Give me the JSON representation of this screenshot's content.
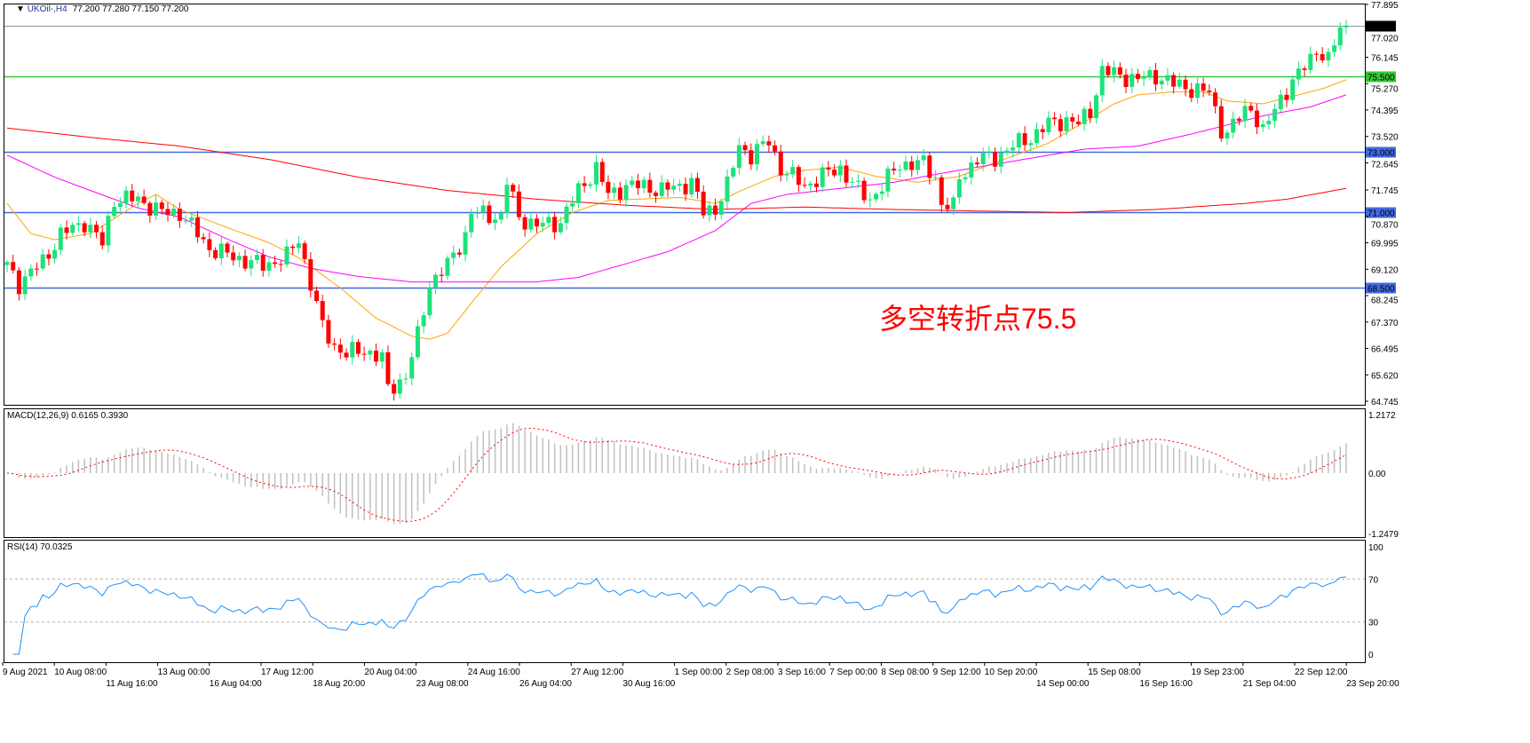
{
  "header": {
    "symbol": "UKOil-,H4",
    "ohlc": "77.200 77.280 77.150 77.200",
    "macd_label": "MACD(12,26,9) 0.6165 0.3930",
    "rsi_label": "RSI(14) 70.0325"
  },
  "annotation": "多空转折点75.5",
  "colors": {
    "bull": "#1de27a",
    "bear": "#ff0000",
    "ma_fast": "#ffa500",
    "ma_mid": "#ff00ff",
    "ma_slow": "#ff0000",
    "level_green": "#32c832",
    "level_blue": "#4169e1",
    "macd_hist": "#c0c0c0",
    "macd_signal": "#ff0000",
    "rsi": "#1e90ff",
    "annotation": "#ff0000"
  },
  "chart_data": [
    {
      "type": "candlestick",
      "title": "UKOil-,H4",
      "ylim": [
        64.745,
        77.895
      ],
      "price_ticks": [
        "77.895",
        "77.020",
        "76.145",
        "75.270",
        "74.395",
        "73.520",
        "72.645",
        "71.745",
        "70.870",
        "69.995",
        "69.120",
        "68.245",
        "67.370",
        "66.495",
        "65.620",
        "64.745"
      ],
      "time_ticks": [
        "9 Aug 2021",
        "10 Aug 08:00",
        "11 Aug 16:00",
        "13 Aug 00:00",
        "16 Aug 04:00",
        "17 Aug 12:00",
        "18 Aug 20:00",
        "20 Aug 04:00",
        "23 Aug 08:00",
        "24 Aug 16:00",
        "26 Aug 04:00",
        "27 Aug 12:00",
        "30 Aug 16:00",
        "1 Sep 00:00",
        "2 Sep 08:00",
        "3 Sep 16:00",
        "7 Sep 00:00",
        "8 Sep 08:00",
        "9 Sep 12:00",
        "10 Sep 20:00",
        "14 Sep 00:00",
        "15 Sep 08:00",
        "16 Sep 16:00",
        "19 Sep 23:00",
        "21 Sep 04:00",
        "22 Sep 12:00",
        "23 Sep 20:00"
      ],
      "bar_count": 226,
      "close_path": [
        [
          0,
          69.24
        ],
        [
          2,
          68.65
        ],
        [
          6,
          69.38
        ],
        [
          9,
          70.26
        ],
        [
          13,
          70.7
        ],
        [
          16,
          69.97
        ],
        [
          18,
          71.44
        ],
        [
          22,
          71.44
        ],
        [
          26,
          71.0
        ],
        [
          29,
          71.0
        ],
        [
          34,
          69.82
        ],
        [
          38,
          69.53
        ],
        [
          43,
          69.24
        ],
        [
          47,
          69.53
        ],
        [
          49,
          70.12
        ],
        [
          51,
          68.65
        ],
        [
          53,
          67.18
        ],
        [
          55,
          66.59
        ],
        [
          57,
          66.3
        ],
        [
          60,
          66.45
        ],
        [
          63,
          66.15
        ],
        [
          64,
          65.13
        ],
        [
          67,
          65.57
        ],
        [
          69,
          66.89
        ],
        [
          71,
          68.65
        ],
        [
          74,
          69.24
        ],
        [
          77,
          70.26
        ],
        [
          78,
          71.0
        ],
        [
          83,
          70.85
        ],
        [
          84,
          72.02
        ],
        [
          86,
          70.85
        ],
        [
          89,
          70.56
        ],
        [
          93,
          70.7
        ],
        [
          96,
          71.73
        ],
        [
          99,
          72.47
        ],
        [
          101,
          71.58
        ],
        [
          104,
          71.88
        ],
        [
          107,
          71.88
        ],
        [
          110,
          71.73
        ],
        [
          113,
          71.88
        ],
        [
          115,
          72.02
        ],
        [
          117,
          71.0
        ],
        [
          119,
          71.15
        ],
        [
          121,
          71.88
        ],
        [
          123,
          73.2
        ],
        [
          125,
          72.91
        ],
        [
          128,
          73.35
        ],
        [
          130,
          72.47
        ],
        [
          134,
          71.88
        ],
        [
          138,
          72.32
        ],
        [
          140,
          72.47
        ],
        [
          143,
          71.73
        ],
        [
          145,
          71.44
        ],
        [
          147,
          71.88
        ],
        [
          150,
          72.61
        ],
        [
          154,
          72.61
        ],
        [
          156,
          72.17
        ],
        [
          157,
          71.29
        ],
        [
          159,
          71.15
        ],
        [
          160,
          72.17
        ],
        [
          163,
          72.76
        ],
        [
          166,
          72.82
        ],
        [
          169,
          73.2
        ],
        [
          172,
          73.49
        ],
        [
          175,
          73.93
        ],
        [
          178,
          74.08
        ],
        [
          180,
          73.93
        ],
        [
          182,
          74.37
        ],
        [
          184,
          75.69
        ],
        [
          187,
          75.55
        ],
        [
          190,
          75.4
        ],
        [
          193,
          75.55
        ],
        [
          196,
          75.25
        ],
        [
          199,
          75.11
        ],
        [
          202,
          74.96
        ],
        [
          204,
          73.79
        ],
        [
          205,
          73.64
        ],
        [
          208,
          74.37
        ],
        [
          209,
          74.52
        ],
        [
          211,
          73.64
        ],
        [
          214,
          74.82
        ],
        [
          217,
          75.55
        ],
        [
          220,
          76.43
        ],
        [
          222,
          75.99
        ],
        [
          224,
          77.16
        ],
        [
          225,
          77.2
        ]
      ],
      "horizontal_levels": [
        {
          "label": "77.200",
          "price": 77.2,
          "color": "#8c96a0",
          "label_bg": "#000000"
        },
        {
          "label": "75.500",
          "price": 75.5,
          "color": "#32c832",
          "label_bg": "#32c832"
        },
        {
          "label": "73.000",
          "price": 73.0,
          "color": "#4169e1",
          "label_bg": "#4169e1"
        },
        {
          "label": "71.000",
          "price": 71.0,
          "color": "#4169e1",
          "label_bg": "#4169e1"
        },
        {
          "label": "68.500",
          "price": 68.5,
          "color": "#4169e1",
          "label_bg": "#4169e1"
        }
      ],
      "moving_averages": [
        {
          "color": "#ffa500",
          "points": [
            [
              0,
              71.3
            ],
            [
              4,
              70.3
            ],
            [
              8,
              70.1
            ],
            [
              14,
              70.3
            ],
            [
              18,
              70.8
            ],
            [
              22,
              71.3
            ],
            [
              25,
              71.6
            ],
            [
              29,
              71.1
            ],
            [
              37,
              70.5
            ],
            [
              44,
              70.0
            ],
            [
              49,
              69.5
            ],
            [
              56,
              68.5
            ],
            [
              62,
              67.5
            ],
            [
              68,
              66.9
            ],
            [
              71,
              66.8
            ],
            [
              74,
              67.0
            ],
            [
              78,
              68.0
            ],
            [
              83,
              69.2
            ],
            [
              89,
              70.3
            ],
            [
              95,
              71.0
            ],
            [
              101,
              71.4
            ],
            [
              113,
              71.5
            ],
            [
              119,
              71.3
            ],
            [
              123,
              71.7
            ],
            [
              129,
              72.2
            ],
            [
              134,
              72.4
            ],
            [
              140,
              72.5
            ],
            [
              146,
              72.2
            ],
            [
              153,
              72.0
            ],
            [
              160,
              72.2
            ],
            [
              168,
              72.8
            ],
            [
              175,
              73.3
            ],
            [
              181,
              74.0
            ],
            [
              186,
              74.6
            ],
            [
              190,
              74.9
            ],
            [
              196,
              75.0
            ],
            [
              201,
              75.0
            ],
            [
              205,
              74.7
            ],
            [
              211,
              74.6
            ],
            [
              217,
              74.9
            ],
            [
              221,
              75.1
            ],
            [
              225,
              75.4
            ]
          ]
        },
        {
          "color": "#ff00ff",
          "points": [
            [
              0,
              72.9
            ],
            [
              8,
              72.17
            ],
            [
              14,
              71.73
            ],
            [
              22,
              71.15
            ],
            [
              29,
              70.85
            ],
            [
              37,
              70.12
            ],
            [
              44,
              69.53
            ],
            [
              51,
              69.15
            ],
            [
              59,
              68.88
            ],
            [
              68,
              68.7
            ],
            [
              77,
              68.7
            ],
            [
              89,
              68.7
            ],
            [
              96,
              68.85
            ],
            [
              104,
              69.3
            ],
            [
              111,
              69.7
            ],
            [
              119,
              70.4
            ],
            [
              125,
              71.3
            ],
            [
              131,
              71.6
            ],
            [
              140,
              71.8
            ],
            [
              149,
              72.0
            ],
            [
              157,
              72.3
            ],
            [
              163,
              72.5
            ],
            [
              172,
              72.8
            ],
            [
              181,
              73.1
            ],
            [
              190,
              73.2
            ],
            [
              199,
              73.6
            ],
            [
              205,
              73.9
            ],
            [
              211,
              74.2
            ],
            [
              219,
              74.5
            ],
            [
              225,
              74.9
            ]
          ]
        },
        {
          "color": "#ff0000",
          "points": [
            [
              0,
              73.8
            ],
            [
              14,
              73.49
            ],
            [
              29,
              73.2
            ],
            [
              44,
              72.76
            ],
            [
              59,
              72.17
            ],
            [
              74,
              71.73
            ],
            [
              89,
              71.44
            ],
            [
              104,
              71.24
            ],
            [
              119,
              71.1
            ],
            [
              134,
              71.18
            ],
            [
              149,
              71.1
            ],
            [
              163,
              71.05
            ],
            [
              178,
              71.0
            ],
            [
              193,
              71.1
            ],
            [
              208,
              71.3
            ],
            [
              215,
              71.44
            ],
            [
              225,
              71.8
            ]
          ]
        }
      ]
    },
    {
      "type": "bar",
      "title": "MACD(12,26,9) 0.6165 0.3930",
      "ylim": [
        -1.2479,
        1.2172
      ],
      "y_ticks": [
        "1.2172",
        "0.00",
        "-1.2479"
      ],
      "series": [
        {
          "name": "MACD",
          "value": 0.6165
        },
        {
          "name": "Signal",
          "value": 0.393
        }
      ]
    },
    {
      "type": "line",
      "title": "RSI(14) 70.0325",
      "ylim": [
        0,
        100
      ],
      "y_ticks": [
        "100",
        "70",
        "30",
        "0"
      ],
      "levels": [
        70,
        30
      ],
      "last_value": 70.0325
    }
  ]
}
